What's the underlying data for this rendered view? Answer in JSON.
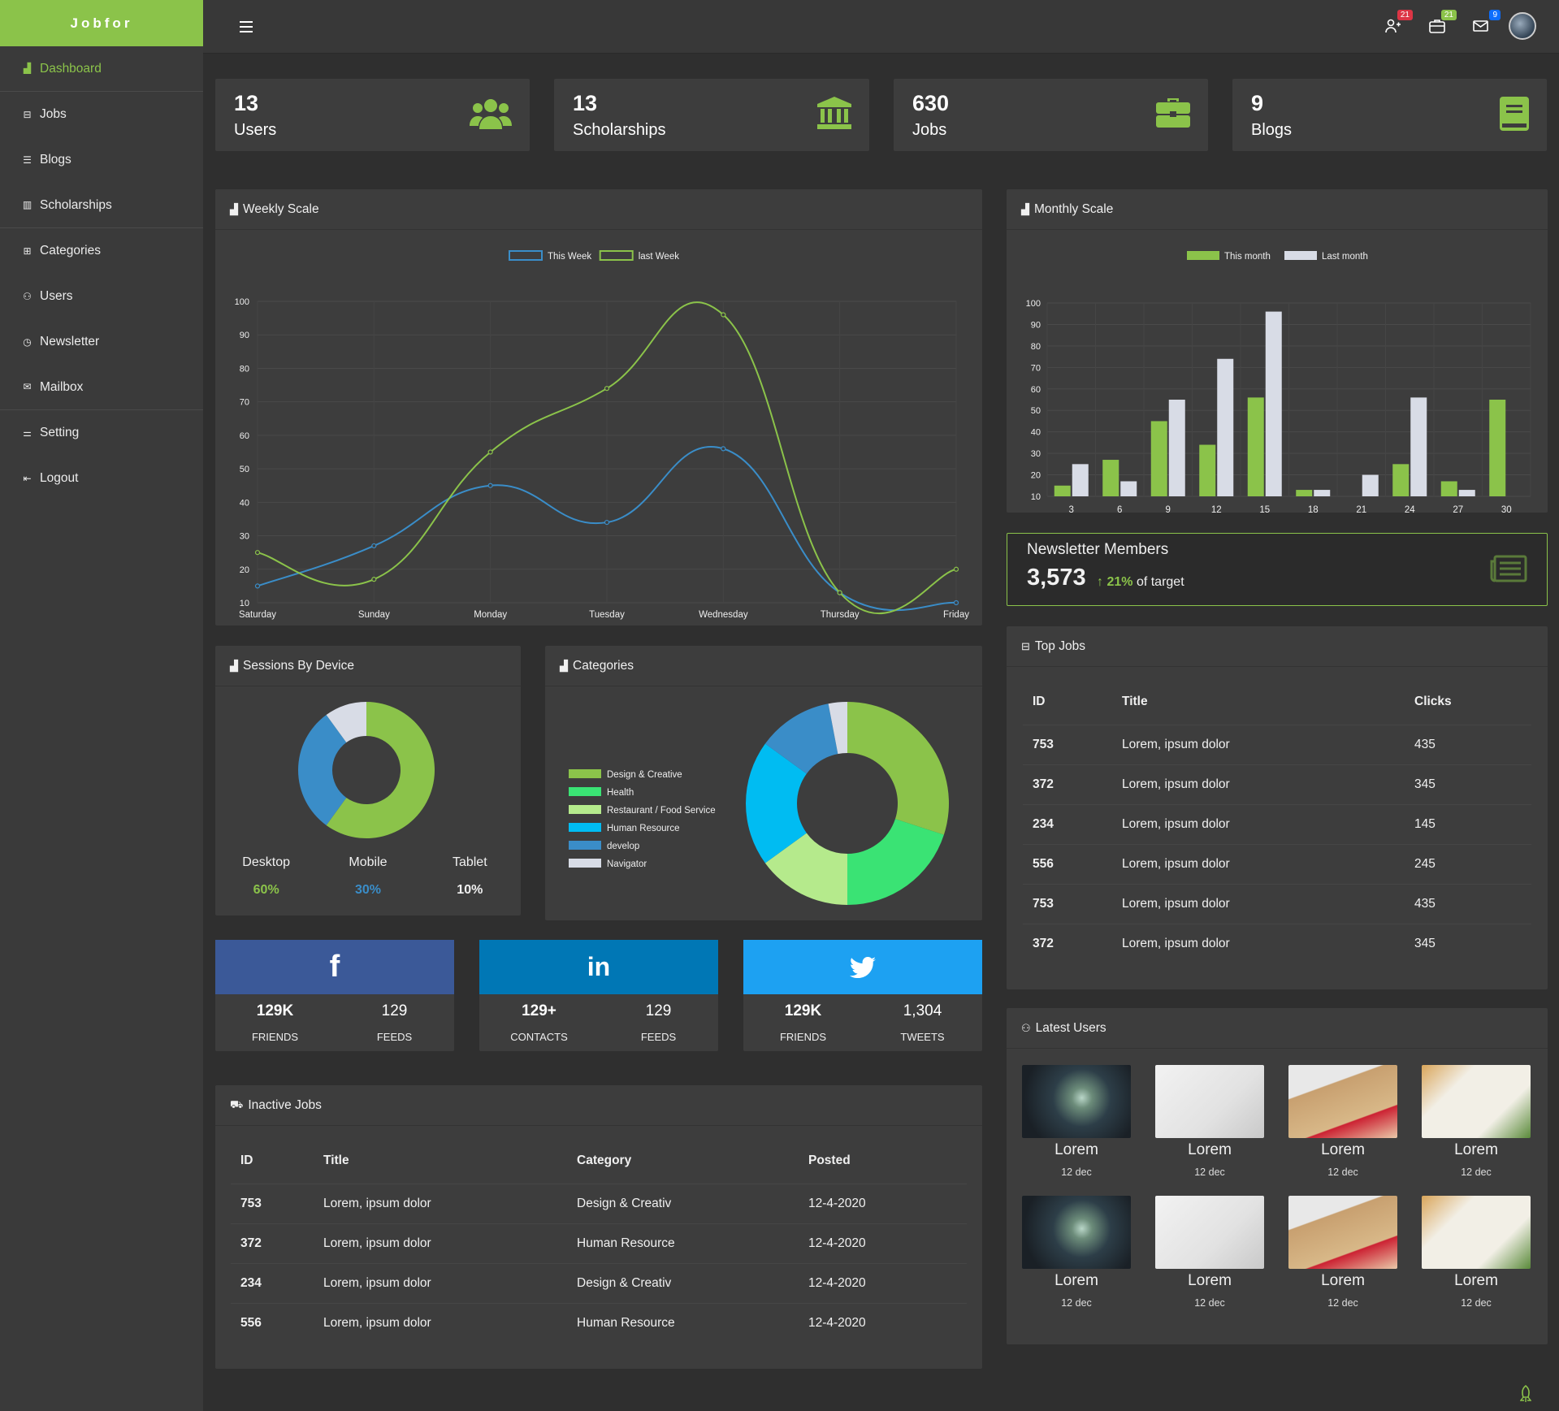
{
  "brand": "Jobfor",
  "sidebar": {
    "items": [
      {
        "label": "Dashboard",
        "icon": "chart-icon"
      },
      {
        "label": "Jobs",
        "icon": "briefcase-icon"
      },
      {
        "label": "Blogs",
        "icon": "list-icon"
      },
      {
        "label": "Scholarships",
        "icon": "columns-icon"
      },
      {
        "label": "Categories",
        "icon": "grid-icon"
      },
      {
        "label": "Users",
        "icon": "users-icon"
      },
      {
        "label": "Newsletter",
        "icon": "clock-icon"
      },
      {
        "label": "Mailbox",
        "icon": "mail-icon"
      },
      {
        "label": "Setting",
        "icon": "sliders-icon"
      },
      {
        "label": "Logout",
        "icon": "logout-icon"
      }
    ]
  },
  "topbar": {
    "badges": {
      "users": "21",
      "jobs": "21",
      "mail": "9"
    },
    "badge_colors": {
      "users": "#dc3545",
      "jobs": "#8bc34a",
      "mail": "#0d6efd"
    }
  },
  "stats": [
    {
      "value": "13",
      "label": "Users",
      "icon": "users-icon"
    },
    {
      "value": "13",
      "label": "Scholarships",
      "icon": "bank-icon"
    },
    {
      "value": "630",
      "label": "Jobs",
      "icon": "briefcase-icon"
    },
    {
      "value": "9",
      "label": "Blogs",
      "icon": "book-icon"
    }
  ],
  "weekly": {
    "title": "Weekly Scale"
  },
  "monthly": {
    "title": "Monthly Scale"
  },
  "newsletter": {
    "title": "Newsletter Members",
    "value": "3,573",
    "pct": "21%",
    "suffix": "of target"
  },
  "sessions": {
    "title": "Sessions By Device",
    "items": [
      {
        "label": "Desktop",
        "value": "60%",
        "color": "#8bc34a"
      },
      {
        "label": "Mobile",
        "value": "30%",
        "color": "#3a8dc8"
      },
      {
        "label": "Tablet",
        "value": "10%",
        "color": "#e8e8e8"
      }
    ]
  },
  "categories": {
    "title": "Categories"
  },
  "top_jobs": {
    "title": "Top Jobs",
    "columns": [
      "ID",
      "Title",
      "Clicks"
    ],
    "rows": [
      [
        "753",
        "Lorem, ipsum dolor",
        "435"
      ],
      [
        "372",
        "Lorem, ipsum dolor",
        "345"
      ],
      [
        "234",
        "Lorem, ipsum dolor",
        "145"
      ],
      [
        "556",
        "Lorem, ipsum dolor",
        "245"
      ],
      [
        "753",
        "Lorem, ipsum dolor",
        "435"
      ],
      [
        "372",
        "Lorem, ipsum dolor",
        "345"
      ]
    ]
  },
  "social": [
    {
      "network": "facebook",
      "icon": "f",
      "color": "#3b5998",
      "a_val": "129K",
      "a_lbl": "FRIENDS",
      "b_val": "129",
      "b_lbl": "FEEDS"
    },
    {
      "network": "linkedin",
      "icon": "in",
      "color": "#0077b5",
      "a_val": "129+",
      "a_lbl": "CONTACTS",
      "b_val": "129",
      "b_lbl": "FEEDS"
    },
    {
      "network": "twitter",
      "icon": "twitter-bird",
      "color": "#1da1f2",
      "a_val": "129K",
      "a_lbl": "FRIENDS",
      "b_val": "1,304",
      "b_lbl": "TWEETS"
    }
  ],
  "inactive_jobs": {
    "title": "Inactive Jobs",
    "columns": [
      "ID",
      "Title",
      "Category",
      "Posted"
    ],
    "rows": [
      [
        "753",
        "Lorem, ipsum dolor",
        "Design & Creativ",
        "12-4-2020"
      ],
      [
        "372",
        "Lorem, ipsum dolor",
        "Human Resource",
        "12-4-2020"
      ],
      [
        "234",
        "Lorem, ipsum dolor",
        "Design & Creativ",
        "12-4-2020"
      ],
      [
        "556",
        "Lorem, ipsum dolor",
        "Human Resource",
        "12-4-2020"
      ]
    ]
  },
  "latest_users": {
    "title": "Latest Users",
    "users": [
      {
        "name": "Lorem",
        "date": "12 dec"
      },
      {
        "name": "Lorem",
        "date": "12 dec"
      },
      {
        "name": "Lorem",
        "date": "12 dec"
      },
      {
        "name": "Lorem",
        "date": "12 dec"
      },
      {
        "name": "Lorem",
        "date": "12 dec"
      },
      {
        "name": "Lorem",
        "date": "12 dec"
      },
      {
        "name": "Lorem",
        "date": "12 dec"
      },
      {
        "name": "Lorem",
        "date": "12 dec"
      }
    ]
  },
  "chart_data": [
    {
      "type": "line",
      "title": "Weekly Scale",
      "x": [
        "Saturday",
        "Sunday",
        "Monday",
        "Tuesday",
        "Wednesday",
        "Thursday",
        "Friday"
      ],
      "ylim": [
        10,
        100
      ],
      "yticks": [
        10,
        20,
        30,
        40,
        50,
        60,
        70,
        80,
        90,
        100
      ],
      "series": [
        {
          "name": "This Week",
          "color": "#3a8dc8",
          "values": [
            15,
            27,
            45,
            34,
            56,
            13,
            10
          ]
        },
        {
          "name": "last Week",
          "color": "#8bc34a",
          "values": [
            25,
            17,
            55,
            74,
            96,
            13,
            20
          ]
        }
      ],
      "legend": "top",
      "grid": true
    },
    {
      "type": "bar",
      "title": "Monthly Scale",
      "categories": [
        "3",
        "6",
        "9",
        "12",
        "15",
        "18",
        "21",
        "24",
        "27",
        "30"
      ],
      "ylim": [
        10,
        100
      ],
      "yticks": [
        10,
        20,
        30,
        40,
        50,
        60,
        70,
        80,
        90,
        100
      ],
      "series": [
        {
          "name": "This month",
          "color": "#8bc34a",
          "values": [
            15,
            27,
            45,
            34,
            56,
            13,
            null,
            25,
            17,
            55
          ]
        },
        {
          "name": "Last month",
          "color": "#d8dce6",
          "values": [
            25,
            17,
            55,
            74,
            96,
            13,
            20,
            56,
            13,
            null
          ]
        }
      ],
      "legend": "top",
      "grid": true
    },
    {
      "type": "pie",
      "title": "Sessions By Device",
      "donut": true,
      "labels": [
        "Desktop",
        "Mobile",
        "Tablet"
      ],
      "values": [
        60,
        30,
        10
      ],
      "colors": [
        "#8bc34a",
        "#3a8dc8",
        "#d8dce6"
      ]
    },
    {
      "type": "pie",
      "title": "Categories",
      "donut": true,
      "labels": [
        "Design & Creative",
        "Health",
        "Restaurant / Food Service",
        "Human Resource",
        "develop",
        "Navigator"
      ],
      "values": [
        30,
        20,
        15,
        20,
        12,
        3
      ],
      "colors": [
        "#8bc34a",
        "#3ae374",
        "#b5ea8c",
        "#00bcf2",
        "#3a8dc8",
        "#d8dce6"
      ],
      "legend": "left"
    }
  ]
}
